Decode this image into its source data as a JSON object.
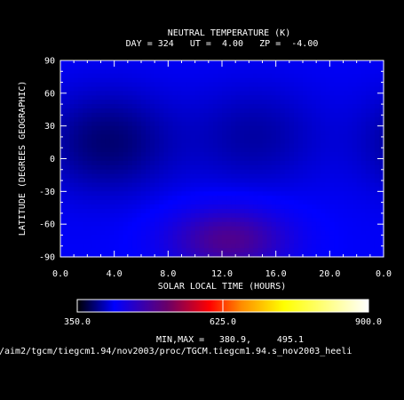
{
  "chart_data": {
    "type": "heatmap",
    "title": "NEUTRAL TEMPERATURE (K)",
    "subtitle": "DAY = 324   UT =  4.00   ZP =  -4.00",
    "xlabel": "SOLAR LOCAL TIME (HOURS)",
    "ylabel": "LATITUDE (DEGREES GEOGRAPHIC)",
    "x_ticks": [
      "0.0",
      "4.0",
      "8.0",
      "12.0",
      "16.0",
      "20.0",
      "0.0"
    ],
    "y_ticks": [
      "90",
      "60",
      "30",
      "0",
      "-30",
      "-60",
      "-90"
    ],
    "xlim": [
      0,
      24
    ],
    "ylim": [
      -90,
      90
    ],
    "colorbar": {
      "min_label": "350.0",
      "mid_label": "625.0",
      "max_label": "900.0",
      "range": [
        350,
        900
      ],
      "stops": [
        {
          "v": 350,
          "c": "#000000"
        },
        {
          "v": 420,
          "c": "#0000ff"
        },
        {
          "v": 520,
          "c": "#6a0068"
        },
        {
          "v": 600,
          "c": "#ff0000"
        },
        {
          "v": 660,
          "c": "#ff8c00"
        },
        {
          "v": 740,
          "c": "#ffff00"
        },
        {
          "v": 900,
          "c": "#ffffff"
        }
      ]
    },
    "minmax_label": "MIN,MAX =",
    "min": "380.9,",
    "max": "495.1",
    "field_features": [
      {
        "lt": 3.5,
        "lat": 15,
        "value": 381
      },
      {
        "lt": 14.5,
        "lat": 20,
        "value": 395
      },
      {
        "lt": 12.5,
        "lat": -75,
        "value": 495
      }
    ]
  },
  "file_path": "/aim2/tgcm/tiegcm1.94/nov2003/proc/TGCM.tiegcm1.94.s_nov2003_heeli"
}
